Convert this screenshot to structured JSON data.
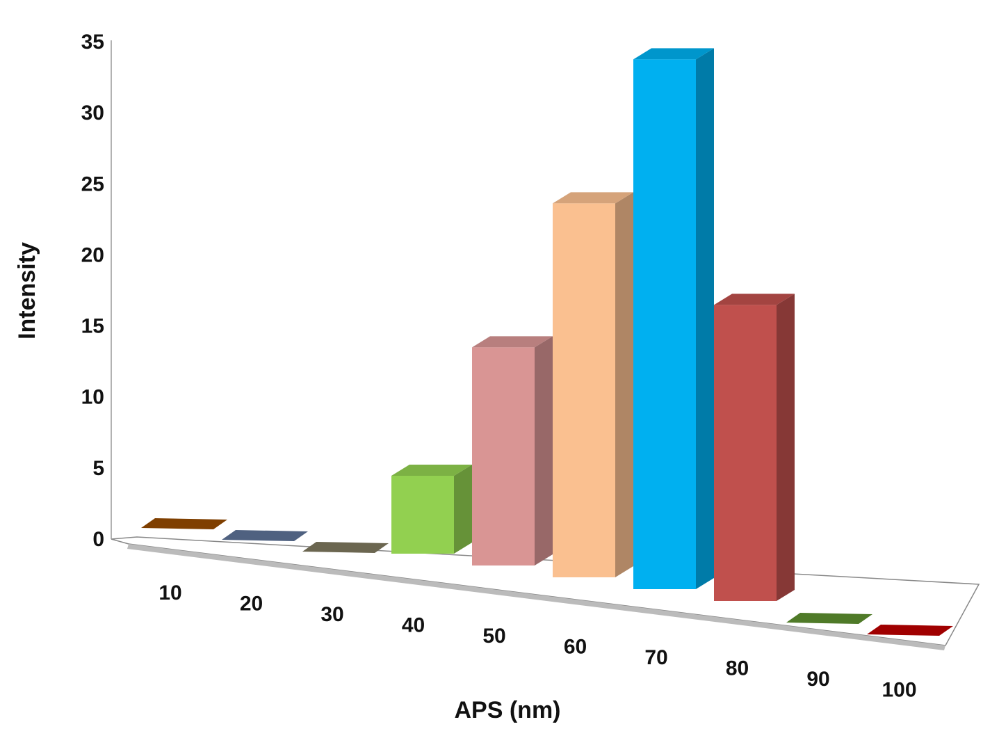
{
  "chart_data": {
    "type": "bar",
    "style": "3d-column",
    "categories": [
      "10",
      "20",
      "30",
      "40",
      "50",
      "60",
      "70",
      "80",
      "90",
      "100"
    ],
    "values": [
      0,
      0,
      0,
      5,
      14,
      24,
      34,
      19,
      0,
      0
    ],
    "colors": [
      "#7f3f00",
      "#4f6180",
      "#6b6650",
      "#92d050",
      "#d99594",
      "#fac090",
      "#00b0f0",
      "#c0504d",
      "#4f7a28",
      "#a00000"
    ],
    "xlabel": "APS (nm)",
    "ylabel": "Intensity",
    "ylim": [
      0,
      35
    ],
    "yticks": [
      "0",
      "5",
      "10",
      "15",
      "20",
      "25",
      "30",
      "35"
    ],
    "grid": false,
    "legend": "none"
  }
}
